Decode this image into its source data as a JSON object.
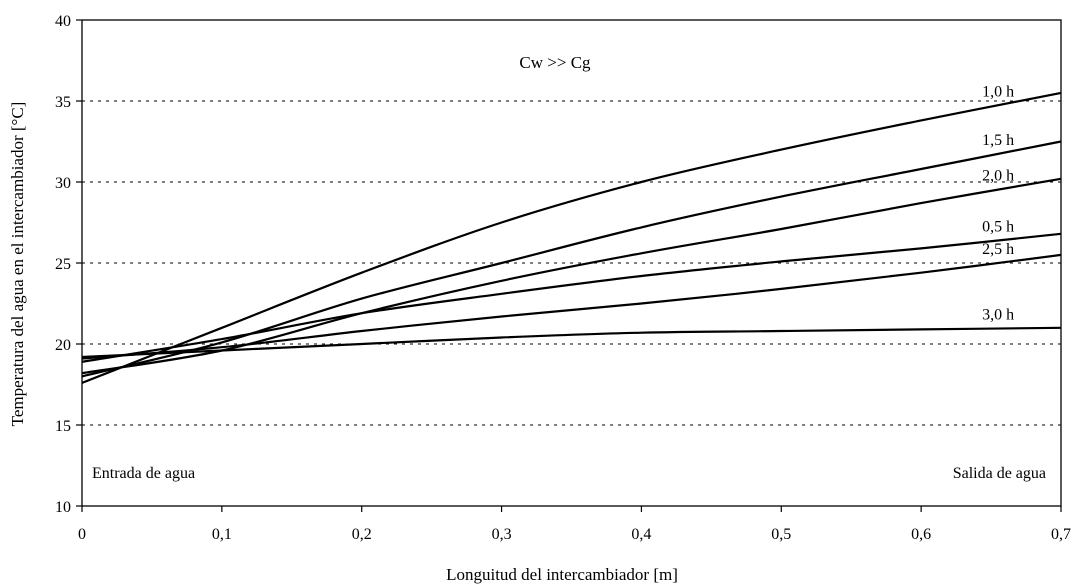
{
  "chart_data": {
    "type": "line",
    "title": "",
    "xlabel": "Longuitud del intercambiador [m]",
    "ylabel": "Temperatura del agua en el intercambiador [°C]",
    "xlim": [
      0,
      0.7
    ],
    "ylim": [
      10,
      40
    ],
    "xticks": [
      "0",
      "0,1",
      "0,2",
      "0,3",
      "0,4",
      "0,5",
      "0,6",
      "0,7"
    ],
    "yticks": [
      "10",
      "15",
      "20",
      "25",
      "30",
      "35",
      "40"
    ],
    "grid": "horizontal dashed",
    "annotation": "Cw >> Cg",
    "left_note": "Entrada de agua",
    "right_note": "Salida de agua",
    "line_color": "#000000",
    "series": [
      {
        "name": "1,0 h",
        "x": [
          0,
          0.1,
          0.2,
          0.3,
          0.4,
          0.5,
          0.6,
          0.7
        ],
        "y": [
          17.6,
          21.0,
          24.4,
          27.5,
          30.0,
          32.0,
          33.8,
          35.5
        ]
      },
      {
        "name": "1,5 h",
        "x": [
          0,
          0.1,
          0.2,
          0.3,
          0.4,
          0.5,
          0.6,
          0.7
        ],
        "y": [
          18.0,
          20.1,
          22.8,
          25.0,
          27.2,
          29.1,
          30.8,
          32.5
        ]
      },
      {
        "name": "2,0 h",
        "x": [
          0,
          0.1,
          0.2,
          0.3,
          0.4,
          0.5,
          0.6,
          0.7
        ],
        "y": [
          18.2,
          19.6,
          21.9,
          23.9,
          25.6,
          27.1,
          28.7,
          30.2
        ]
      },
      {
        "name": "0,5 h",
        "x": [
          0,
          0.1,
          0.2,
          0.3,
          0.4,
          0.5,
          0.6,
          0.7
        ],
        "y": [
          18.9,
          20.3,
          21.9,
          23.1,
          24.2,
          25.1,
          25.9,
          26.8
        ]
      },
      {
        "name": "2,5 h",
        "x": [
          0,
          0.1,
          0.2,
          0.3,
          0.4,
          0.5,
          0.6,
          0.7
        ],
        "y": [
          19.1,
          19.8,
          20.8,
          21.7,
          22.5,
          23.4,
          24.4,
          25.5
        ]
      },
      {
        "name": "3,0 h",
        "x": [
          0,
          0.1,
          0.2,
          0.3,
          0.4,
          0.5,
          0.6,
          0.7
        ],
        "y": [
          19.2,
          19.6,
          20.0,
          20.4,
          20.7,
          20.8,
          20.9,
          21.0
        ]
      }
    ]
  }
}
